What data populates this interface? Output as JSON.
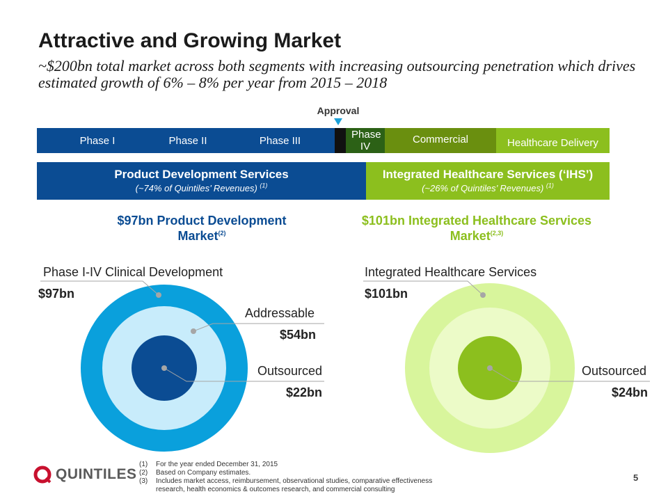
{
  "title": "Attractive and Growing Market",
  "subtitle": "~$200bn total market across both segments with increasing outsourcing penetration which drives estimated growth of 6% – 8% per year from 2015 – 2018",
  "approval_label": "Approval",
  "phases": [
    "Phase I",
    "Phase II",
    "Phase III",
    "Phase IV",
    "Commercial",
    "Healthcare Delivery"
  ],
  "segments": {
    "pds": {
      "title": "Product Development Services",
      "subtitle": "(~74% of Quintiles’ Revenues)",
      "note": "(1)"
    },
    "ihs": {
      "title": "Integrated Healthcare Services (‘IHS’)",
      "subtitle": "(~26% of Quintiles’ Revenues)",
      "note": "(1)"
    }
  },
  "markets": {
    "pds": {
      "line1": "$97bn Product Development",
      "line2": "Market",
      "note": "(2)"
    },
    "ihs": {
      "line1": "$101bn Integrated Healthcare Services",
      "line2": "Market",
      "note": "(2,3)"
    }
  },
  "left_circle": {
    "outer_label": "Phase I-IV Clinical Development",
    "outer_value": "$97bn",
    "mid_label": "Addressable",
    "mid_value": "$54bn",
    "inner_label": "Outsourced",
    "inner_value": "$22bn"
  },
  "right_circle": {
    "outer_label": "Integrated Healthcare Services",
    "outer_value": "$101bn",
    "inner_label": "Outsourced",
    "inner_value": "$24bn"
  },
  "footnotes": [
    {
      "num": "(1)",
      "text": "For the year ended December 31, 2015"
    },
    {
      "num": "(2)",
      "text": "Based on Company estimates."
    },
    {
      "num": "(3)",
      "text": "Includes market access, reimbursement, observational studies, comparative effectiveness research, health economics & outcomes research, and commercial consulting"
    }
  ],
  "logo_text": "QUINTILES",
  "page_number": "5",
  "colors": {
    "navy": "#0b4c93",
    "lime": "#8cbf1e",
    "dark_green": "#2c6116",
    "olive": "#6a8f0f",
    "sky": "#0aa0dc",
    "sky_light": "#c8ecfb",
    "lime_light": "#d8f59c",
    "lime_pale": "#ecfbc8",
    "logo_red": "#c8102e"
  }
}
